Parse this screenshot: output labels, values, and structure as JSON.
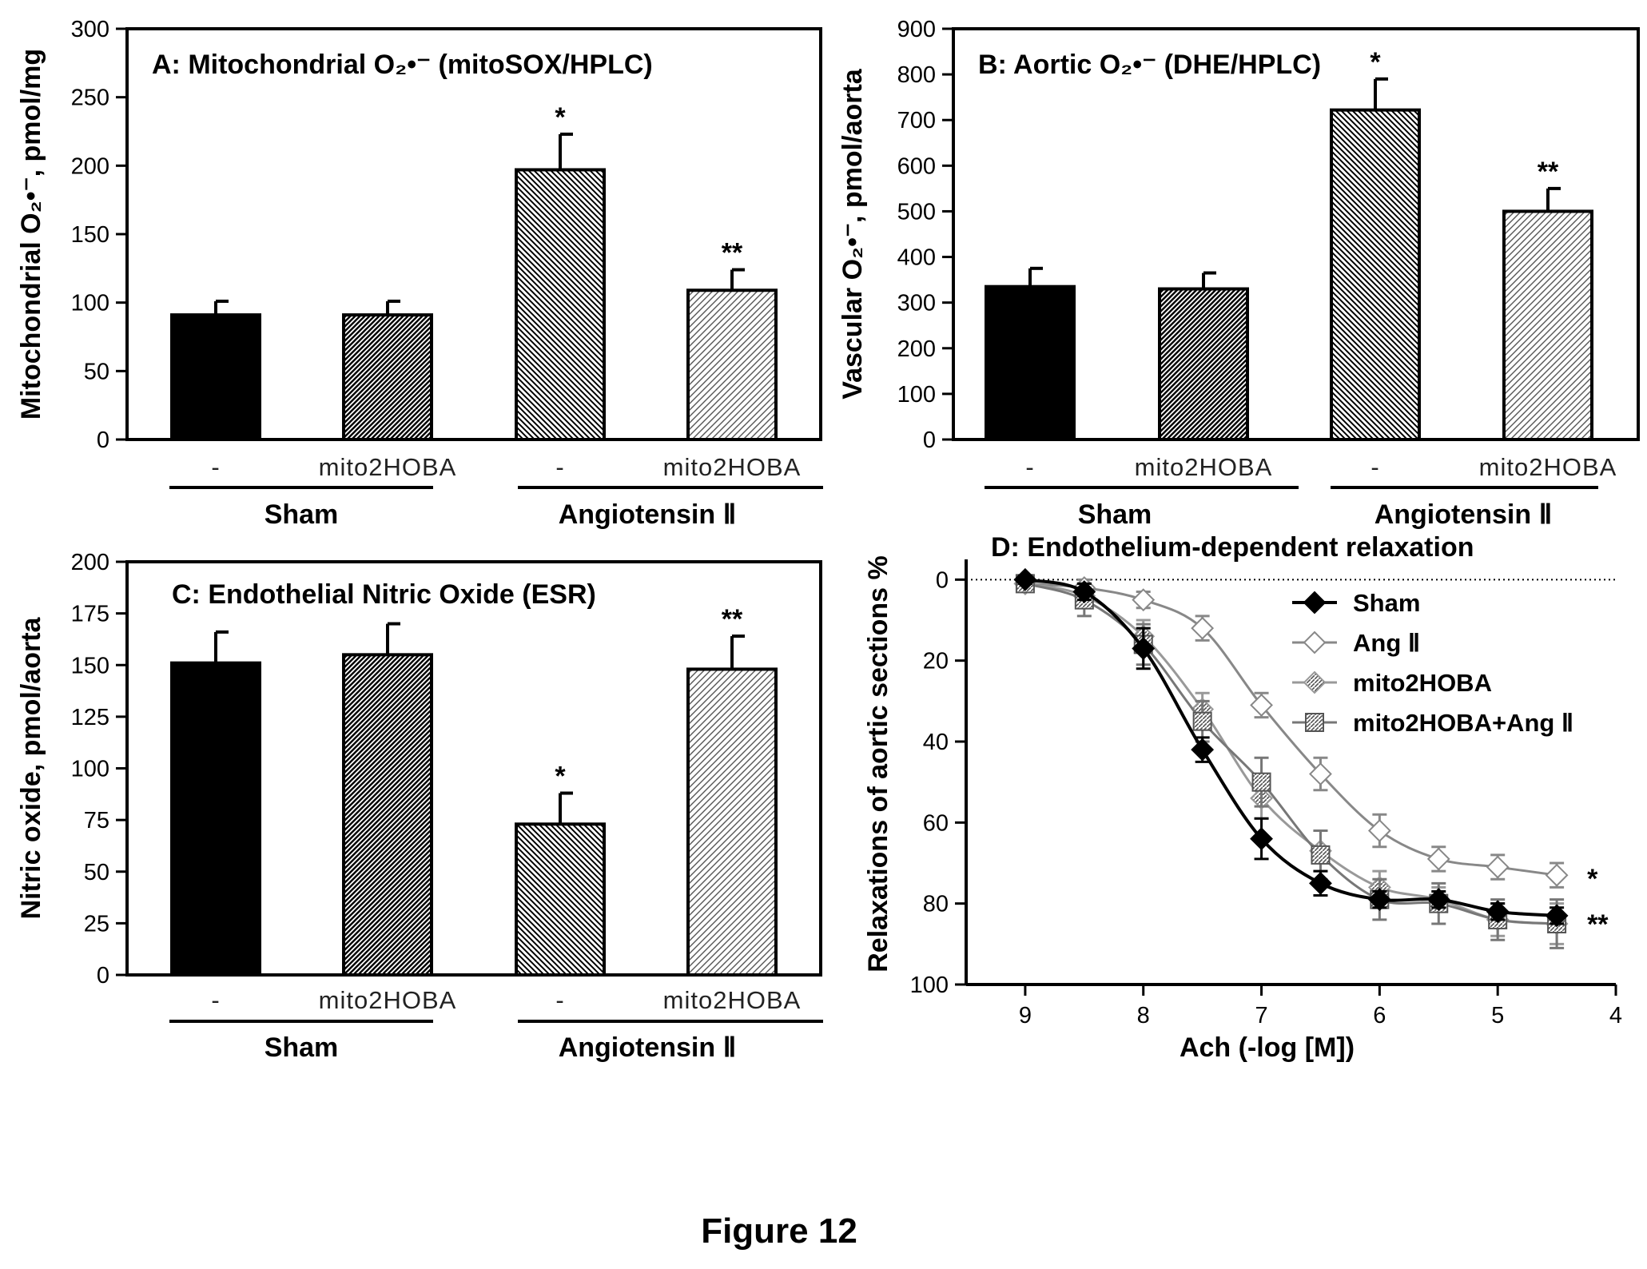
{
  "figure_title": "Figure 12",
  "chart_data": [
    {
      "type": "bar",
      "title": "A: Mitochondrial O₂•⁻ (mitoSOX/HPLC)",
      "ylabel": "Mitochondrial O₂•⁻, pmol/mg",
      "xlabel": "",
      "ylim": [
        0,
        300
      ],
      "yticks": [
        0,
        50,
        100,
        150,
        200,
        250,
        300
      ],
      "categories": [
        "-",
        "mito2HOBA",
        "-",
        "mito2HOBA"
      ],
      "groups": [
        {
          "label": "Sham",
          "categories": [
            0,
            1
          ]
        },
        {
          "label": "Angiotensin Ⅱ",
          "categories": [
            2,
            3
          ]
        }
      ],
      "values": [
        91,
        91,
        197,
        109
      ],
      "errors": [
        10,
        10,
        26,
        15
      ],
      "annotations": [
        "",
        "",
        "*",
        "**"
      ],
      "fills": [
        "solid",
        "dense-hatch",
        "hatch",
        "light-hatch"
      ]
    },
    {
      "type": "bar",
      "title": "B: Aortic O₂•⁻ (DHE/HPLC)",
      "ylabel": "Vascular O₂•⁻, pmol/aorta",
      "xlabel": "",
      "ylim": [
        0,
        900
      ],
      "yticks": [
        0,
        100,
        200,
        300,
        400,
        500,
        600,
        700,
        800,
        900
      ],
      "categories": [
        "-",
        "mito2HOBA",
        "-",
        "mito2HOBA"
      ],
      "groups": [
        {
          "label": "Sham",
          "categories": [
            0,
            1
          ]
        },
        {
          "label": "Angiotensin Ⅱ",
          "categories": [
            2,
            3
          ]
        }
      ],
      "values": [
        335,
        330,
        722,
        500
      ],
      "errors": [
        40,
        35,
        68,
        50
      ],
      "annotations": [
        "",
        "",
        "*",
        "**"
      ],
      "fills": [
        "solid",
        "dense-hatch",
        "hatch",
        "light-hatch"
      ]
    },
    {
      "type": "bar",
      "title": "C: Endothelial Nitric Oxide (ESR)",
      "ylabel": "Nitric oxide, pmol/aorta",
      "xlabel": "",
      "ylim": [
        0,
        200
      ],
      "yticks": [
        0,
        25,
        50,
        75,
        100,
        125,
        150,
        175,
        200
      ],
      "categories": [
        "-",
        "mito2HOBA",
        "-",
        "mito2HOBA"
      ],
      "groups": [
        {
          "label": "Sham",
          "categories": [
            0,
            1
          ]
        },
        {
          "label": "Angiotensin Ⅱ",
          "categories": [
            2,
            3
          ]
        }
      ],
      "values": [
        151,
        155,
        73,
        148
      ],
      "errors": [
        15,
        15,
        15,
        16
      ],
      "annotations": [
        "",
        "",
        "*",
        "**"
      ],
      "fills": [
        "solid",
        "dense-hatch",
        "hatch",
        "light-hatch"
      ]
    },
    {
      "type": "line",
      "title": "D: Endothelium-dependent relaxation",
      "xlabel": "Ach (-log [M])",
      "ylabel": "Relaxations of aortic sections %",
      "xlim": [
        9.5,
        4
      ],
      "ylim": [
        100,
        -5
      ],
      "y_inverted": true,
      "xticks": [
        9,
        8,
        7,
        6,
        5,
        4
      ],
      "yticks": [
        0,
        20,
        40,
        60,
        80,
        100
      ],
      "reference_line": 0,
      "legend_position": "upper-right",
      "x": [
        9,
        8.5,
        8,
        7.5,
        7,
        6.5,
        6,
        5.5,
        5,
        4.5
      ],
      "series": [
        {
          "name": "Sham",
          "marker": "diamond",
          "color": "#000000",
          "values": [
            0,
            3,
            17,
            42,
            64,
            75,
            79,
            79,
            82,
            83
          ],
          "errors": [
            1,
            2,
            5,
            3,
            5,
            3,
            2,
            2,
            2,
            2
          ]
        },
        {
          "name": "Ang Ⅱ",
          "marker": "diamond-open",
          "color": "#888888",
          "values": [
            1,
            2,
            5,
            12,
            31,
            48,
            62,
            69,
            71,
            73
          ],
          "errors": [
            1,
            2,
            2,
            3,
            3,
            4,
            4,
            3,
            3,
            3
          ]
        },
        {
          "name": "mito2HOBA",
          "marker": "diamond-hatch",
          "color": "#999999",
          "values": [
            1,
            4,
            14,
            32,
            54,
            67,
            76,
            79,
            84,
            85
          ],
          "errors": [
            1,
            2,
            4,
            4,
            5,
            5,
            4,
            3,
            4,
            5
          ]
        },
        {
          "name": "mito2HOBA+Ang Ⅱ",
          "marker": "square-hatch",
          "color": "#777777",
          "values": [
            1,
            5,
            16,
            35,
            50,
            68,
            79,
            80,
            84,
            85
          ],
          "errors": [
            2,
            4,
            5,
            5,
            6,
            6,
            5,
            5,
            5,
            6
          ]
        }
      ],
      "annotations": [
        {
          "text": "*",
          "near": "Ang Ⅱ"
        },
        {
          "text": "**",
          "near": "mito2HOBA+Ang Ⅱ"
        }
      ]
    }
  ]
}
